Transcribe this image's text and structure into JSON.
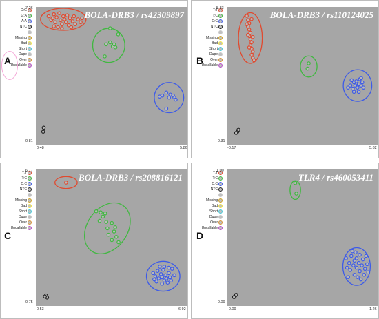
{
  "legend_colors": {
    "red": "#e04a2f",
    "green": "#3fb83f",
    "blue": "#3d5be8",
    "ntc": "#222222",
    "missing": "#d0a020",
    "bad": "#f2e640",
    "short": "#46c8d8",
    "over": "#d89030",
    "uncallable": "#b84cc8",
    "empty": "#c8c8c8"
  },
  "panels": [
    {
      "label": "A",
      "title": "BOLA-DRB3 / rs42309897",
      "y_max": "7.26",
      "y_min": "0.81",
      "x_min": "0.48",
      "x_max": "5.86",
      "legend": [
        "G:G",
        "G:A",
        "A:A",
        "NTC",
        "",
        "Missing",
        "Bad",
        "Short",
        "Dupe",
        "Over",
        "Uncallable"
      ],
      "legend_color_keys": [
        "red",
        "green",
        "blue",
        "ntc",
        "empty",
        "missing",
        "bad",
        "short",
        "empty",
        "over",
        "uncallable"
      ],
      "chart_data": {
        "type": "scatter",
        "xlim": [
          0.48,
          5.86
        ],
        "ylim": [
          0.81,
          7.26
        ],
        "clusters": [
          {
            "genotype": "G:G",
            "color": "#e04a2f",
            "ellipse": {
              "cx": 1.35,
              "cy": 6.85,
              "rx": 0.85,
              "ry": 0.55
            },
            "points": [
              [
                0.8,
                7.0
              ],
              [
                0.9,
                6.8
              ],
              [
                1.0,
                7.1
              ],
              [
                1.05,
                6.7
              ],
              [
                1.1,
                6.95
              ],
              [
                1.2,
                7.15
              ],
              [
                1.25,
                6.8
              ],
              [
                1.3,
                6.6
              ],
              [
                1.35,
                7.0
              ],
              [
                1.4,
                6.85
              ],
              [
                1.45,
                6.7
              ],
              [
                1.5,
                7.05
              ],
              [
                1.55,
                6.55
              ],
              [
                1.6,
                6.9
              ],
              [
                1.7,
                6.75
              ],
              [
                1.75,
                7.0
              ],
              [
                1.8,
                6.6
              ],
              [
                1.9,
                6.85
              ],
              [
                2.0,
                6.7
              ],
              [
                1.0,
                6.5
              ],
              [
                1.15,
                6.45
              ],
              [
                0.95,
                6.9
              ],
              [
                1.3,
                6.4
              ],
              [
                1.65,
                6.45
              ],
              [
                2.05,
                6.9
              ]
            ]
          },
          {
            "genotype": "G:A",
            "color": "#3fb83f",
            "ellipse": {
              "cx": 3.05,
              "cy": 5.55,
              "rx": 0.6,
              "ry": 0.85
            },
            "points": [
              [
                3.1,
                6.4
              ],
              [
                2.95,
                5.6
              ],
              [
                3.1,
                5.7
              ],
              [
                3.2,
                5.5
              ],
              [
                3.25,
                5.6
              ],
              [
                3.3,
                5.45
              ],
              [
                2.9,
                5.0
              ],
              [
                3.4,
                6.1
              ]
            ]
          },
          {
            "genotype": "A:A",
            "color": "#3d5be8",
            "ellipse": {
              "cx": 5.3,
              "cy": 2.95,
              "rx": 0.55,
              "ry": 0.75
            },
            "points": [
              [
                4.95,
                3.0
              ],
              [
                5.05,
                3.05
              ],
              [
                5.2,
                3.2
              ],
              [
                5.3,
                2.95
              ],
              [
                5.35,
                3.1
              ],
              [
                5.45,
                3.05
              ],
              [
                5.5,
                2.95
              ],
              [
                5.55,
                2.85
              ],
              [
                5.2,
                2.4
              ]
            ]
          },
          {
            "genotype": "NTC",
            "color": "#222222",
            "points": [
              [
                0.62,
                1.45
              ],
              [
                0.6,
                1.25
              ]
            ]
          }
        ]
      }
    },
    {
      "label": "B",
      "title": "BOLA-DRB3 / rs110124025",
      "y_max": "5.83",
      "y_min": "-0.31",
      "x_min": "-0.17",
      "x_max": "5.82",
      "legend": [
        "T:T",
        "T:C",
        "C:C",
        "NTC",
        "",
        "Missing",
        "Bad",
        "Short",
        "Dupe",
        "Over",
        "Uncallable"
      ],
      "legend_color_keys": [
        "red",
        "green",
        "blue",
        "ntc",
        "empty",
        "missing",
        "bad",
        "short",
        "empty",
        "over",
        "uncallable"
      ],
      "chart_data": {
        "type": "scatter",
        "xlim": [
          -0.17,
          5.82
        ],
        "ylim": [
          -0.31,
          5.83
        ],
        "clusters": [
          {
            "genotype": "T:T",
            "color": "#e04a2f",
            "ellipse": {
              "cx": 0.65,
              "cy": 4.55,
              "rx": 0.5,
              "ry": 1.2
            },
            "points": [
              [
                0.5,
                5.6
              ],
              [
                0.55,
                5.4
              ],
              [
                0.6,
                5.25
              ],
              [
                0.55,
                5.1
              ],
              [
                0.6,
                4.95
              ],
              [
                0.65,
                4.8
              ],
              [
                0.6,
                4.65
              ],
              [
                0.65,
                4.5
              ],
              [
                0.7,
                4.35
              ],
              [
                0.65,
                4.2
              ],
              [
                0.7,
                4.05
              ],
              [
                0.75,
                3.9
              ],
              [
                0.7,
                3.75
              ],
              [
                0.75,
                3.6
              ],
              [
                0.8,
                3.5
              ],
              [
                0.5,
                5.2
              ],
              [
                0.55,
                4.7
              ],
              [
                0.6,
                4.1
              ],
              [
                0.7,
                5.45
              ],
              [
                0.75,
                4.6
              ]
            ]
          },
          {
            "genotype": "T:C",
            "color": "#3fb83f",
            "ellipse": {
              "cx": 3.1,
              "cy": 3.2,
              "rx": 0.35,
              "ry": 0.5
            },
            "points": [
              [
                3.1,
                3.35
              ],
              [
                3.05,
                3.1
              ]
            ]
          },
          {
            "genotype": "C:C",
            "color": "#3d5be8",
            "ellipse": {
              "cx": 5.15,
              "cy": 2.3,
              "rx": 0.6,
              "ry": 0.75
            },
            "points": [
              [
                4.75,
                2.2
              ],
              [
                4.85,
                2.3
              ],
              [
                4.95,
                2.15
              ],
              [
                5.0,
                2.45
              ],
              [
                5.05,
                2.3
              ],
              [
                5.1,
                2.5
              ],
              [
                5.15,
                2.2
              ],
              [
                5.2,
                2.35
              ],
              [
                5.25,
                2.6
              ],
              [
                5.3,
                2.3
              ],
              [
                5.35,
                2.45
              ],
              [
                5.4,
                2.2
              ],
              [
                5.0,
                2.0
              ],
              [
                5.2,
                2.0
              ],
              [
                4.9,
                2.55
              ],
              [
                5.3,
                2.65
              ]
            ]
          },
          {
            "genotype": "NTC",
            "color": "#222222",
            "points": [
              [
                0.1,
                0.1
              ],
              [
                0.15,
                0.2
              ],
              [
                0.05,
                0.05
              ]
            ]
          }
        ]
      }
    },
    {
      "label": "C",
      "title": "BOLA-DRB3 / rs208816121",
      "y_max": "6.77",
      "y_min": "0.75",
      "x_min": "0.53",
      "x_max": "6.92",
      "legend": [
        "T:T",
        "T:C",
        "C:C",
        "NTC",
        "",
        "Missing",
        "Bad",
        "Short",
        "Dupe",
        "Over",
        "Uncallable"
      ],
      "legend_color_keys": [
        "red",
        "green",
        "blue",
        "ntc",
        "empty",
        "missing",
        "bad",
        "short",
        "empty",
        "over",
        "uncallable"
      ],
      "chart_data": {
        "type": "scatter",
        "xlim": [
          0.53,
          6.92
        ],
        "ylim": [
          0.75,
          6.77
        ],
        "clusters": [
          {
            "genotype": "T:T",
            "color": "#e04a2f",
            "ellipse": {
              "cx": 1.7,
              "cy": 6.35,
              "rx": 0.5,
              "ry": 0.28
            },
            "points": [
              [
                1.7,
                6.35
              ]
            ]
          },
          {
            "genotype": "T:C",
            "color": "#3fb83f",
            "ellipse": {
              "cx": 3.55,
              "cy": 4.2,
              "rx": 0.9,
              "ry": 1.3
            },
            "points": [
              [
                3.05,
                5.0
              ],
              [
                3.25,
                4.95
              ],
              [
                3.45,
                4.9
              ],
              [
                3.2,
                4.55
              ],
              [
                3.5,
                4.5
              ],
              [
                3.75,
                4.45
              ],
              [
                3.55,
                4.2
              ],
              [
                3.85,
                4.05
              ],
              [
                3.6,
                3.9
              ],
              [
                3.95,
                3.8
              ],
              [
                3.75,
                3.65
              ],
              [
                4.05,
                3.55
              ],
              [
                3.35,
                4.75
              ],
              [
                3.9,
                4.25
              ]
            ]
          },
          {
            "genotype": "C:C",
            "color": "#3d5be8",
            "ellipse": {
              "cx": 6.05,
              "cy": 1.95,
              "rx": 0.75,
              "ry": 0.7
            },
            "points": [
              [
                5.6,
                2.1
              ],
              [
                5.7,
                1.95
              ],
              [
                5.8,
                2.2
              ],
              [
                5.85,
                1.85
              ],
              [
                5.95,
                2.05
              ],
              [
                6.0,
                1.9
              ],
              [
                6.05,
                2.25
              ],
              [
                6.1,
                1.75
              ],
              [
                6.15,
                2.0
              ],
              [
                6.2,
                1.85
              ],
              [
                6.3,
                2.1
              ],
              [
                6.35,
                1.9
              ],
              [
                6.45,
                2.3
              ],
              [
                5.75,
                1.7
              ],
              [
                6.0,
                1.6
              ],
              [
                6.25,
                1.65
              ],
              [
                5.9,
                2.4
              ],
              [
                6.4,
                1.75
              ],
              [
                6.55,
                2.0
              ],
              [
                5.65,
                1.8
              ],
              [
                6.1,
                2.4
              ],
              [
                6.3,
                2.35
              ]
            ]
          },
          {
            "genotype": "NTC",
            "color": "#222222",
            "points": [
              [
                0.8,
                1.05
              ],
              [
                0.85,
                0.95
              ],
              [
                0.75,
                1.0
              ]
            ]
          }
        ]
      }
    },
    {
      "label": "D",
      "title": "TLR4 / rs460053411",
      "y_max": "1.00",
      "y_min": "-0.09",
      "x_min": "-0.09",
      "x_max": "1.26",
      "legend": [
        "T:T",
        "T:C",
        "C:C",
        "NTC",
        "",
        "Missing",
        "Bad",
        "Short",
        "Dupe",
        "Over",
        "Uncallable"
      ],
      "legend_color_keys": [
        "red",
        "green",
        "blue",
        "ntc",
        "empty",
        "missing",
        "bad",
        "short",
        "empty",
        "over",
        "uncallable"
      ],
      "chart_data": {
        "type": "scatter",
        "xlim": [
          -0.09,
          1.26
        ],
        "ylim": [
          -0.09,
          1.0
        ],
        "clusters": [
          {
            "genotype": "T:T",
            "color": "#e04a2f",
            "points": []
          },
          {
            "genotype": "T:C",
            "color": "#3fb83f",
            "ellipse": {
              "cx": 0.52,
              "cy": 0.86,
              "rx": 0.05,
              "ry": 0.08
            },
            "points": [
              [
                0.52,
                0.92
              ],
              [
                0.53,
                0.83
              ]
            ]
          },
          {
            "genotype": "C:C",
            "color": "#3d5be8",
            "ellipse": {
              "cx": 1.1,
              "cy": 0.21,
              "rx": 0.13,
              "ry": 0.16
            },
            "points": [
              [
                1.0,
                0.28
              ],
              [
                1.03,
                0.24
              ],
              [
                1.05,
                0.3
              ],
              [
                1.07,
                0.22
              ],
              [
                1.08,
                0.26
              ],
              [
                1.1,
                0.2
              ],
              [
                1.1,
                0.28
              ],
              [
                1.12,
                0.24
              ],
              [
                1.13,
                0.17
              ],
              [
                1.15,
                0.22
              ],
              [
                1.16,
                0.27
              ],
              [
                1.17,
                0.14
              ],
              [
                1.18,
                0.19
              ],
              [
                1.2,
                0.23
              ],
              [
                1.04,
                0.18
              ],
              [
                1.08,
                0.14
              ],
              [
                1.11,
                0.12
              ],
              [
                1.14,
                0.1
              ],
              [
                1.06,
                0.34
              ],
              [
                1.19,
                0.3
              ],
              [
                1.01,
                0.2
              ],
              [
                1.13,
                0.31
              ],
              [
                1.21,
                0.16
              ],
              [
                1.09,
                0.33
              ],
              [
                1.02,
                0.12
              ]
            ]
          },
          {
            "genotype": "NTC",
            "color": "#222222",
            "points": [
              [
                -0.05,
                -0.04
              ],
              [
                -0.04,
                -0.03
              ],
              [
                -0.06,
                -0.05
              ]
            ]
          }
        ]
      }
    }
  ]
}
